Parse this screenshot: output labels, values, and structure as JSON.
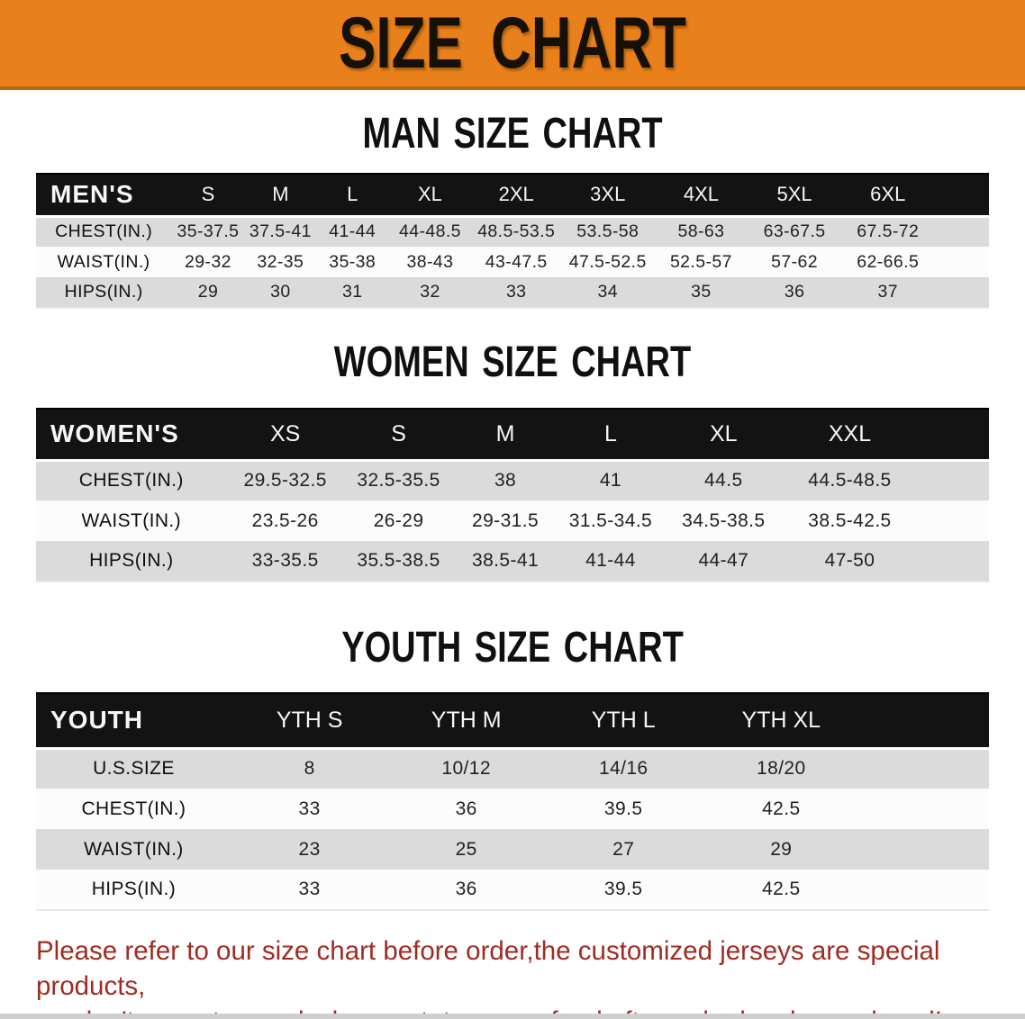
{
  "banner": {
    "title": "SIZE CHART",
    "bg_color": "#E8811B",
    "text_color": "#161006"
  },
  "colors": {
    "header_bar": "#131313",
    "row_gray": "#DBDBDB",
    "row_white": "#FCFCFC",
    "footer_red": "#A02B24"
  },
  "sections": [
    {
      "heading": "MAN SIZE CHART",
      "table": {
        "header_label": "MEN'S",
        "sizes": [
          "S",
          "M",
          "L",
          "XL",
          "2XL",
          "3XL",
          "4XL",
          "5XL",
          "6XL"
        ],
        "rows": [
          {
            "label": "CHEST(IN.)",
            "values": [
              "35-37.5",
              "37.5-41",
              "41-44",
              "44-48.5",
              "48.5-53.5",
              "53.5-58",
              "58-63",
              "63-67.5",
              "67.5-72"
            ]
          },
          {
            "label": "WAIST(IN.)",
            "values": [
              "29-32",
              "32-35",
              "35-38",
              "38-43",
              "43-47.5",
              "47.5-52.5",
              "52.5-57",
              "57-62",
              "62-66.5"
            ]
          },
          {
            "label": "HIPS(IN.)",
            "values": [
              "29",
              "30",
              "31",
              "32",
              "33",
              "34",
              "35",
              "36",
              "37"
            ]
          }
        ]
      }
    },
    {
      "heading": "WOMEN SIZE CHART",
      "table": {
        "header_label": "WOMEN'S",
        "sizes": [
          "XS",
          "S",
          "M",
          "L",
          "XL",
          "XXL"
        ],
        "rows": [
          {
            "label": "CHEST(IN.)",
            "values": [
              "29.5-32.5",
              "32.5-35.5",
              "38",
              "41",
              "44.5",
              "44.5-48.5"
            ]
          },
          {
            "label": "WAIST(IN.)",
            "values": [
              "23.5-26",
              "26-29",
              "29-31.5",
              "31.5-34.5",
              "34.5-38.5",
              "38.5-42.5"
            ]
          },
          {
            "label": "HIPS(IN.)",
            "values": [
              "33-35.5",
              "35.5-38.5",
              "38.5-41",
              "41-44",
              "44-47",
              "47-50"
            ]
          }
        ]
      }
    },
    {
      "heading": "YOUTH SIZE CHART",
      "table": {
        "header_label": "YOUTH",
        "sizes": [
          "YTH S",
          "YTH M",
          "YTH L",
          "YTH XL"
        ],
        "rows": [
          {
            "label": "U.S.SIZE",
            "values": [
              "8",
              "10/12",
              "14/16",
              "18/20"
            ]
          },
          {
            "label": "CHEST(IN.)",
            "values": [
              "33",
              "36",
              "39.5",
              "42.5"
            ]
          },
          {
            "label": "WAIST(IN.)",
            "values": [
              "23",
              "25",
              "27",
              "29"
            ]
          },
          {
            "label": "HIPS(IN.)",
            "values": [
              "33",
              "36",
              "39.5",
              "42.5"
            ]
          }
        ]
      }
    }
  ],
  "footer": {
    "line1": "Please refer to our size chart before order,the customized jerseys are special products,",
    "line2": "we don't accept cancel, change, teturn or refund after order has been placed!"
  }
}
